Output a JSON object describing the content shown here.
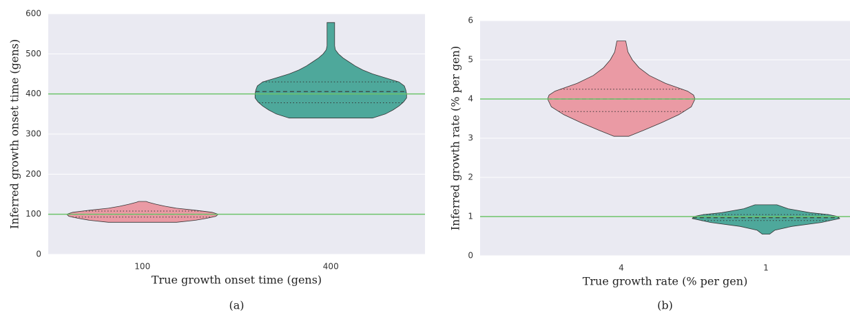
{
  "chart_data": [
    {
      "type": "violin",
      "xlabel": "True growth onset time (gens)",
      "ylabel": "Inferred growth onset time (gens)",
      "caption": "(a)",
      "categories": [
        "100",
        "400"
      ],
      "ylim": [
        0,
        600
      ],
      "yticks": [
        0,
        100,
        200,
        300,
        400,
        500,
        600
      ],
      "reference_lines": [
        100,
        400
      ],
      "reference_color": "#6cc46a",
      "background": "#eaeaf2",
      "violins": [
        {
          "color": "#ea9aa4",
          "q1": 93,
          "median": 100,
          "q3": 108,
          "profile_y": [
            80,
            85,
            90,
            95,
            100,
            105,
            110,
            115,
            120,
            125,
            130,
            132
          ],
          "profile_width": [
            0.45,
            0.7,
            0.85,
            0.97,
            1.0,
            0.92,
            0.7,
            0.45,
            0.3,
            0.18,
            0.08,
            0.05
          ]
        },
        {
          "color": "#4ea89b",
          "q1": 378,
          "median": 406,
          "q3": 430,
          "profile_y": [
            340,
            350,
            360,
            370,
            380,
            390,
            400,
            410,
            420,
            430,
            440,
            450,
            460,
            470,
            480,
            490,
            500,
            510,
            520,
            540,
            560,
            578
          ],
          "profile_width": [
            0.55,
            0.72,
            0.82,
            0.9,
            0.96,
            1.0,
            1.0,
            0.99,
            0.97,
            0.9,
            0.72,
            0.55,
            0.42,
            0.32,
            0.24,
            0.16,
            0.1,
            0.06,
            0.05,
            0.05,
            0.05,
            0.05
          ]
        }
      ]
    },
    {
      "type": "violin",
      "xlabel": "True growth rate (% per gen)",
      "ylabel": "Inferred growth rate (% per gen)",
      "caption": "(b)",
      "categories": [
        "4",
        "1"
      ],
      "ylim": [
        0,
        6
      ],
      "yticks": [
        0,
        1,
        2,
        3,
        4,
        5,
        6
      ],
      "reference_lines": [
        4,
        1
      ],
      "reference_color": "#6cc46a",
      "background": "#eaeaf2",
      "violins": [
        {
          "color": "#ea9aa4",
          "q1": 3.68,
          "median": 4.0,
          "q3": 4.25,
          "profile_y": [
            3.05,
            3.2,
            3.4,
            3.6,
            3.8,
            4.0,
            4.1,
            4.2,
            4.4,
            4.6,
            4.8,
            5.0,
            5.2,
            5.48
          ],
          "profile_width": [
            0.1,
            0.3,
            0.55,
            0.78,
            0.95,
            1.0,
            0.98,
            0.9,
            0.6,
            0.38,
            0.24,
            0.15,
            0.09,
            0.06
          ]
        },
        {
          "color": "#4ea89b",
          "q1": 0.9,
          "median": 0.97,
          "q3": 1.05,
          "profile_y": [
            0.55,
            0.65,
            0.75,
            0.85,
            0.95,
            1.0,
            1.05,
            1.1,
            1.2,
            1.3
          ],
          "profile_width": [
            0.05,
            0.12,
            0.35,
            0.75,
            1.0,
            0.98,
            0.85,
            0.6,
            0.3,
            0.15
          ]
        }
      ]
    }
  ]
}
